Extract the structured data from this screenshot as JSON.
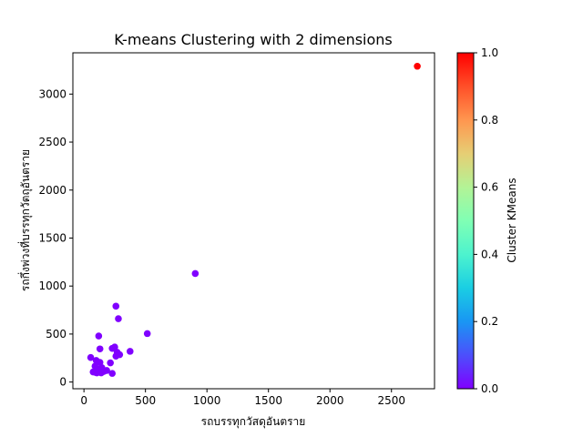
{
  "chart_data": {
    "type": "scatter",
    "title": "K-means Clustering with 2 dimensions",
    "xlabel": "รถบรรทุกวัสดุอันตราย",
    "ylabel": "รถกึ่งพ่วงที่บรรทุกวัตถุอันตราย",
    "xlim": [
      -90,
      2850
    ],
    "ylim": [
      -70,
      3430
    ],
    "x_ticks": [
      0,
      500,
      1000,
      1500,
      2000,
      2500
    ],
    "y_ticks": [
      0,
      500,
      1000,
      1500,
      2000,
      2500,
      3000
    ],
    "colorbar": {
      "label": "Cluster KMeans",
      "ticks": [
        0.0,
        0.2,
        0.4,
        0.6,
        0.8,
        1.0
      ],
      "range": [
        0.0,
        1.0
      ],
      "colormap": "rainbow"
    },
    "points": [
      {
        "x": 2710,
        "y": 3290,
        "cluster": 1
      },
      {
        "x": 905,
        "y": 1130,
        "cluster": 0
      },
      {
        "x": 260,
        "y": 790,
        "cluster": 0
      },
      {
        "x": 280,
        "y": 660,
        "cluster": 0
      },
      {
        "x": 515,
        "y": 505,
        "cluster": 0
      },
      {
        "x": 120,
        "y": 480,
        "cluster": 0
      },
      {
        "x": 250,
        "y": 365,
        "cluster": 0
      },
      {
        "x": 230,
        "y": 350,
        "cluster": 0
      },
      {
        "x": 130,
        "y": 345,
        "cluster": 0
      },
      {
        "x": 375,
        "y": 320,
        "cluster": 0
      },
      {
        "x": 270,
        "y": 310,
        "cluster": 0
      },
      {
        "x": 290,
        "y": 285,
        "cluster": 0
      },
      {
        "x": 260,
        "y": 270,
        "cluster": 0
      },
      {
        "x": 55,
        "y": 255,
        "cluster": 0
      },
      {
        "x": 100,
        "y": 225,
        "cluster": 0
      },
      {
        "x": 130,
        "y": 205,
        "cluster": 0
      },
      {
        "x": 215,
        "y": 200,
        "cluster": 0
      },
      {
        "x": 90,
        "y": 165,
        "cluster": 0
      },
      {
        "x": 145,
        "y": 150,
        "cluster": 0
      },
      {
        "x": 120,
        "y": 135,
        "cluster": 0
      },
      {
        "x": 185,
        "y": 120,
        "cluster": 0
      },
      {
        "x": 160,
        "y": 110,
        "cluster": 0
      },
      {
        "x": 75,
        "y": 105,
        "cluster": 0
      },
      {
        "x": 105,
        "y": 95,
        "cluster": 0
      },
      {
        "x": 230,
        "y": 90,
        "cluster": 0
      },
      {
        "x": 95,
        "y": 100,
        "cluster": 0
      },
      {
        "x": 140,
        "y": 95,
        "cluster": 0
      }
    ]
  }
}
